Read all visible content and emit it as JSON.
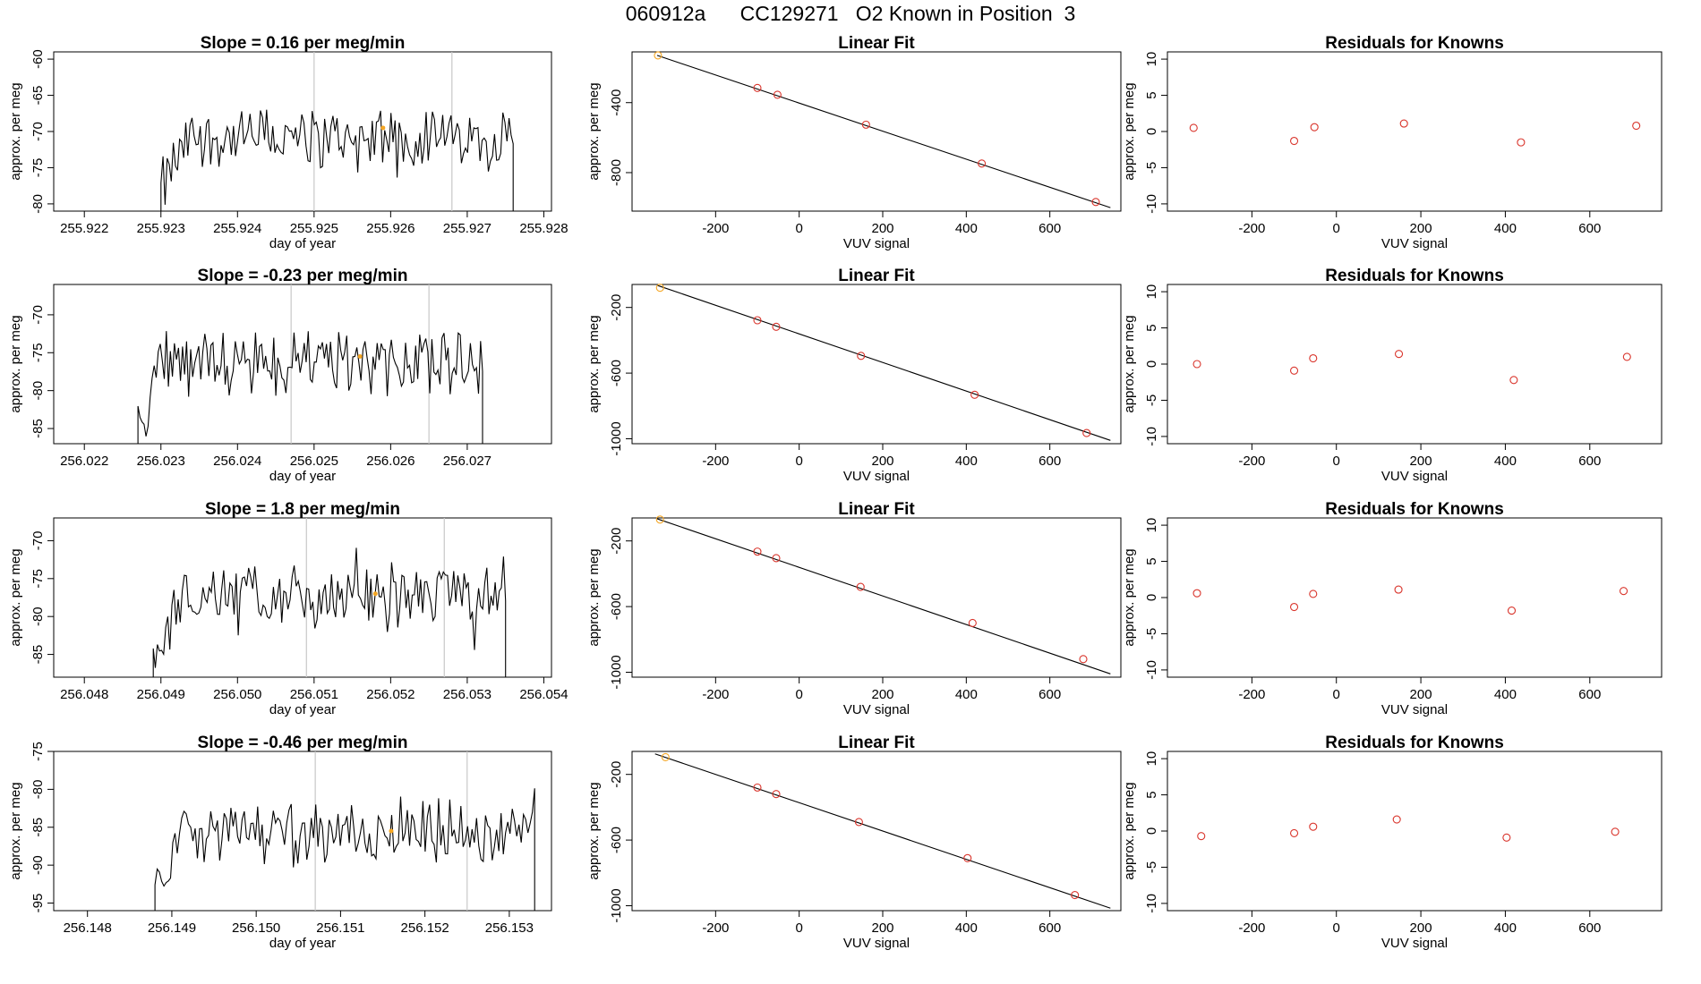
{
  "title": "060912a      CC129271   O2 Known in Position  3",
  "rows": [
    {
      "ts": {
        "title": "Slope =  0.16  per meg/min",
        "xlabel": "day of year",
        "ylabel": "approx. per meg",
        "xlim": [
          255.9216,
          255.9281
        ],
        "ylim": [
          -81,
          -59
        ],
        "xticks": [
          255.922,
          255.923,
          255.924,
          255.925,
          255.926,
          255.927,
          255.928
        ],
        "xtick_labels": [
          "255.922",
          "255.923",
          "255.924",
          "255.925",
          "255.926",
          "255.927",
          "255.928"
        ],
        "yticks": [
          -80,
          -75,
          -70,
          -65,
          -60
        ],
        "ytick_labels": [
          "-80",
          "-75",
          "-70",
          "-65",
          "-60"
        ],
        "vlines": [
          255.925,
          255.9268
        ],
        "start": 255.923,
        "end": 255.9276,
        "base": -71,
        "amp": 3.2,
        "first": -78,
        "marker": [
          255.9259,
          -69.5
        ]
      },
      "fit": {
        "title": "Linear Fit",
        "xlabel": "VUV signal",
        "ylabel": "approx. per meg",
        "xlim": [
          -400,
          770
        ],
        "ylim": [
          -1020,
          -110
        ],
        "xticks": [
          -200,
          0,
          200,
          400,
          600
        ],
        "xtick_labels": [
          "-200",
          "0",
          "200",
          "400",
          "600"
        ],
        "yticks": [
          -400,
          -800
        ],
        "ytick_labels": [
          "-400",
          "-800"
        ],
        "line": [
          [
            -340,
            -130
          ],
          [
            745,
            -1000
          ]
        ],
        "points": [
          [
            -338,
            -130
          ],
          [
            -100,
            -316
          ],
          [
            -52,
            -355
          ],
          [
            160,
            -526
          ],
          [
            437,
            -748
          ],
          [
            710,
            -968
          ]
        ],
        "highlight_index": 0
      },
      "res": {
        "title": "Residuals for Knowns",
        "xlabel": "VUV signal",
        "ylabel": "approx. per meg",
        "xlim": [
          -400,
          770
        ],
        "ylim": [
          -11,
          11
        ],
        "xticks": [
          -200,
          0,
          200,
          400,
          600
        ],
        "xtick_labels": [
          "-200",
          "0",
          "200",
          "400",
          "600"
        ],
        "yticks": [
          -10,
          -5,
          0,
          5,
          10
        ],
        "ytick_labels": [
          "-10",
          "-5",
          "0",
          "5",
          "10"
        ],
        "points": [
          [
            -338,
            0.5
          ],
          [
            -100,
            -1.3
          ],
          [
            -52,
            0.6
          ],
          [
            160,
            1.1
          ],
          [
            437,
            -1.5
          ],
          [
            710,
            0.8
          ]
        ]
      }
    },
    {
      "ts": {
        "title": "Slope =  -0.23  per meg/min",
        "xlabel": "day of year",
        "ylabel": "approx. per meg",
        "xlim": [
          256.0216,
          256.0281
        ],
        "ylim": [
          -87,
          -66
        ],
        "xticks": [
          256.022,
          256.023,
          256.024,
          256.025,
          256.026,
          256.027
        ],
        "xtick_labels": [
          "256.022",
          "256.023",
          "256.024",
          "256.025",
          "256.026",
          "256.027"
        ],
        "yticks": [
          -85,
          -80,
          -75,
          -70
        ],
        "ytick_labels": [
          "-85",
          "-80",
          "-75",
          "-70"
        ],
        "vlines": [
          256.0247,
          256.0265
        ],
        "start": 256.0227,
        "end": 256.0272,
        "base": -76.5,
        "amp": 3.2,
        "first": -84,
        "marker": [
          256.0256,
          -75.5
        ]
      },
      "fit": {
        "title": "Linear Fit",
        "xlabel": "VUV signal",
        "ylabel": "approx. per meg",
        "xlim": [
          -400,
          770
        ],
        "ylim": [
          -1030,
          -60
        ],
        "xticks": [
          -200,
          0,
          200,
          400,
          600
        ],
        "xtick_labels": [
          "-200",
          "0",
          "200",
          "400",
          "600"
        ],
        "yticks": [
          -200,
          -600,
          -1000
        ],
        "ytick_labels": [
          "-200",
          "-600",
          "-1000"
        ],
        "line": [
          [
            -340,
            -65
          ],
          [
            745,
            -1010
          ]
        ],
        "points": [
          [
            -333,
            -80
          ],
          [
            -100,
            -278
          ],
          [
            -55,
            -318
          ],
          [
            148,
            -495
          ],
          [
            420,
            -732
          ],
          [
            688,
            -965
          ]
        ],
        "highlight_index": 0
      },
      "res": {
        "title": "Residuals for Knowns",
        "xlabel": "VUV signal",
        "ylabel": "approx. per meg",
        "xlim": [
          -400,
          770
        ],
        "ylim": [
          -11,
          11
        ],
        "xticks": [
          -200,
          0,
          200,
          400,
          600
        ],
        "xtick_labels": [
          "-200",
          "0",
          "200",
          "400",
          "600"
        ],
        "yticks": [
          -10,
          -5,
          0,
          5,
          10
        ],
        "ytick_labels": [
          "-10",
          "-5",
          "0",
          "5",
          "10"
        ],
        "points": [
          [
            -330,
            0.0
          ],
          [
            -100,
            -0.9
          ],
          [
            -55,
            0.8
          ],
          [
            148,
            1.4
          ],
          [
            420,
            -2.2
          ],
          [
            688,
            1.0
          ]
        ]
      }
    },
    {
      "ts": {
        "title": "Slope =  1.8  per meg/min",
        "xlabel": "day of year",
        "ylabel": "approx. per meg",
        "xlim": [
          256.0476,
          256.0541
        ],
        "ylim": [
          -88,
          -67
        ],
        "xticks": [
          256.048,
          256.049,
          256.05,
          256.051,
          256.052,
          256.053,
          256.054
        ],
        "xtick_labels": [
          "256.048",
          "256.049",
          "256.050",
          "256.051",
          "256.052",
          "256.053",
          "256.054"
        ],
        "yticks": [
          -85,
          -80,
          -75,
          -70
        ],
        "ytick_labels": [
          "-85",
          "-80",
          "-75",
          "-70"
        ],
        "vlines": [
          256.0509,
          256.0527
        ],
        "start": 256.0489,
        "end": 256.0535,
        "base": -77.5,
        "amp": 3.2,
        "first": -86,
        "marker": [
          256.0518,
          -77
        ]
      },
      "fit": {
        "title": "Linear Fit",
        "xlabel": "VUV signal",
        "ylabel": "approx. per meg",
        "xlim": [
          -400,
          770
        ],
        "ylim": [
          -1030,
          -60
        ],
        "xticks": [
          -200,
          0,
          200,
          400,
          600
        ],
        "xtick_labels": [
          "-200",
          "0",
          "200",
          "400",
          "600"
        ],
        "yticks": [
          -200,
          -600,
          -1000
        ],
        "ytick_labels": [
          "-200",
          "-600",
          "-1000"
        ],
        "line": [
          [
            -340,
            -65
          ],
          [
            745,
            -1010
          ]
        ],
        "points": [
          [
            -333,
            -70
          ],
          [
            -100,
            -265
          ],
          [
            -55,
            -305
          ],
          [
            147,
            -480
          ],
          [
            415,
            -700
          ],
          [
            680,
            -920
          ]
        ],
        "highlight_index": 0
      },
      "res": {
        "title": "Residuals for Knowns",
        "xlabel": "VUV signal",
        "ylabel": "approx. per meg",
        "xlim": [
          -400,
          770
        ],
        "ylim": [
          -11,
          11
        ],
        "xticks": [
          -200,
          0,
          200,
          400,
          600
        ],
        "xtick_labels": [
          "-200",
          "0",
          "200",
          "400",
          "600"
        ],
        "yticks": [
          -10,
          -5,
          0,
          5,
          10
        ],
        "ytick_labels": [
          "-10",
          "-5",
          "0",
          "5",
          "10"
        ],
        "points": [
          [
            -330,
            0.6
          ],
          [
            -100,
            -1.3
          ],
          [
            -55,
            0.5
          ],
          [
            147,
            1.1
          ],
          [
            415,
            -1.8
          ],
          [
            680,
            0.9
          ]
        ]
      }
    },
    {
      "ts": {
        "title": "Slope =  -0.46  per meg/min",
        "xlabel": "day of year",
        "ylabel": "approx. per meg",
        "xlim": [
          256.1476,
          256.1535
        ],
        "ylim": [
          -96,
          -75
        ],
        "xticks": [
          256.148,
          256.149,
          256.15,
          256.151,
          256.152,
          256.153
        ],
        "xtick_labels": [
          "256.148",
          "256.149",
          "256.150",
          "256.151",
          "256.152",
          "256.153"
        ],
        "yticks": [
          -95,
          -90,
          -85,
          -80,
          -75
        ],
        "ytick_labels": [
          "-95",
          "-90",
          "-85",
          "-80",
          "-75"
        ],
        "vlines": [
          256.1507,
          256.1525
        ],
        "start": 256.1488,
        "end": 256.1533,
        "base": -85.5,
        "amp": 3.2,
        "first": -94,
        "marker": [
          256.1516,
          -85.5
        ]
      },
      "fit": {
        "title": "Linear Fit",
        "xlabel": "VUV signal",
        "ylabel": "approx. per meg",
        "xlim": [
          -400,
          770
        ],
        "ylim": [
          -1030,
          -60
        ],
        "xticks": [
          -200,
          0,
          200,
          400,
          600
        ],
        "xtick_labels": [
          "-200",
          "0",
          "200",
          "400",
          "600"
        ],
        "yticks": [
          -200,
          -600,
          -1000
        ],
        "ytick_labels": [
          "-200",
          "-600",
          "-1000"
        ],
        "line": [
          [
            -345,
            -75
          ],
          [
            745,
            -1015
          ]
        ],
        "points": [
          [
            -320,
            -95
          ],
          [
            -100,
            -280
          ],
          [
            -55,
            -320
          ],
          [
            143,
            -490
          ],
          [
            403,
            -710
          ],
          [
            660,
            -935
          ]
        ],
        "highlight_index": 0
      },
      "res": {
        "title": "Residuals for Knowns",
        "xlabel": "VUV signal",
        "ylabel": "approx. per meg",
        "xlim": [
          -400,
          770
        ],
        "ylim": [
          -11,
          11
        ],
        "xticks": [
          -200,
          0,
          200,
          400,
          600
        ],
        "xtick_labels": [
          "-200",
          "0",
          "200",
          "400",
          "600"
        ],
        "yticks": [
          -10,
          -5,
          0,
          5,
          10
        ],
        "ytick_labels": [
          "-10",
          "-5",
          "0",
          "5",
          "10"
        ],
        "points": [
          [
            -320,
            -0.7
          ],
          [
            -100,
            -0.3
          ],
          [
            -55,
            0.6
          ],
          [
            143,
            1.6
          ],
          [
            403,
            -0.9
          ],
          [
            660,
            -0.1
          ]
        ]
      }
    }
  ],
  "colors": {
    "line": "#000000",
    "point": "#d9342b",
    "highlight": "#f5a623",
    "vline": "#c8c8c8",
    "frame": "#000000"
  },
  "chart_data": [
    {
      "type": "line",
      "title": "Slope =  0.16  per meg/min",
      "xlabel": "day of year",
      "ylabel": "approx. per meg",
      "xlim": [
        255.9216,
        255.9281
      ],
      "ylim": [
        -81,
        -59
      ]
    },
    {
      "type": "scatter",
      "title": "Linear Fit",
      "xlabel": "VUV signal",
      "ylabel": "approx. per meg",
      "x": [
        -338,
        -100,
        -52,
        160,
        437,
        710
      ],
      "y": [
        -130,
        -316,
        -355,
        -526,
        -748,
        -968
      ]
    },
    {
      "type": "scatter",
      "title": "Residuals for Knowns",
      "xlabel": "VUV signal",
      "ylabel": "approx. per meg",
      "x": [
        -338,
        -100,
        -52,
        160,
        437,
        710
      ],
      "y": [
        0.5,
        -1.3,
        0.6,
        1.1,
        -1.5,
        0.8
      ]
    },
    {
      "type": "line",
      "title": "Slope =  -0.23  per meg/min",
      "xlabel": "day of year",
      "ylabel": "approx. per meg",
      "xlim": [
        256.0216,
        256.0281
      ],
      "ylim": [
        -87,
        -66
      ]
    },
    {
      "type": "scatter",
      "title": "Linear Fit",
      "xlabel": "VUV signal",
      "ylabel": "approx. per meg",
      "x": [
        -333,
        -100,
        -55,
        148,
        420,
        688
      ],
      "y": [
        -80,
        -278,
        -318,
        -495,
        -732,
        -965
      ]
    },
    {
      "type": "scatter",
      "title": "Residuals for Knowns",
      "xlabel": "VUV signal",
      "ylabel": "approx. per meg",
      "x": [
        -330,
        -100,
        -55,
        148,
        420,
        688
      ],
      "y": [
        0.0,
        -0.9,
        0.8,
        1.4,
        -2.2,
        1.0
      ]
    },
    {
      "type": "line",
      "title": "Slope =  1.8  per meg/min",
      "xlabel": "day of year",
      "ylabel": "approx. per meg",
      "xlim": [
        256.0476,
        256.0541
      ],
      "ylim": [
        -88,
        -67
      ]
    },
    {
      "type": "scatter",
      "title": "Linear Fit",
      "xlabel": "VUV signal",
      "ylabel": "approx. per meg",
      "x": [
        -333,
        -100,
        -55,
        147,
        415,
        680
      ],
      "y": [
        -70,
        -265,
        -305,
        -480,
        -700,
        -920
      ]
    },
    {
      "type": "scatter",
      "title": "Residuals for Knowns",
      "xlabel": "VUV signal",
      "ylabel": "approx. per meg",
      "x": [
        -330,
        -100,
        -55,
        147,
        415,
        680
      ],
      "y": [
        0.6,
        -1.3,
        0.5,
        1.1,
        -1.8,
        0.9
      ]
    },
    {
      "type": "line",
      "title": "Slope =  -0.46  per meg/min",
      "xlabel": "day of year",
      "ylabel": "approx. per meg",
      "xlim": [
        256.1476,
        256.1535
      ],
      "ylim": [
        -96,
        -75
      ]
    },
    {
      "type": "scatter",
      "title": "Linear Fit",
      "xlabel": "VUV signal",
      "ylabel": "approx. per meg",
      "x": [
        -320,
        -100,
        -55,
        143,
        403,
        660
      ],
      "y": [
        -95,
        -280,
        -320,
        -490,
        -710,
        -935
      ]
    },
    {
      "type": "scatter",
      "title": "Residuals for Knowns",
      "xlabel": "VUV signal",
      "ylabel": "approx. per meg",
      "x": [
        -320,
        -100,
        -55,
        143,
        403,
        660
      ],
      "y": [
        -0.7,
        -0.3,
        0.6,
        1.6,
        -0.9,
        -0.1
      ]
    }
  ]
}
